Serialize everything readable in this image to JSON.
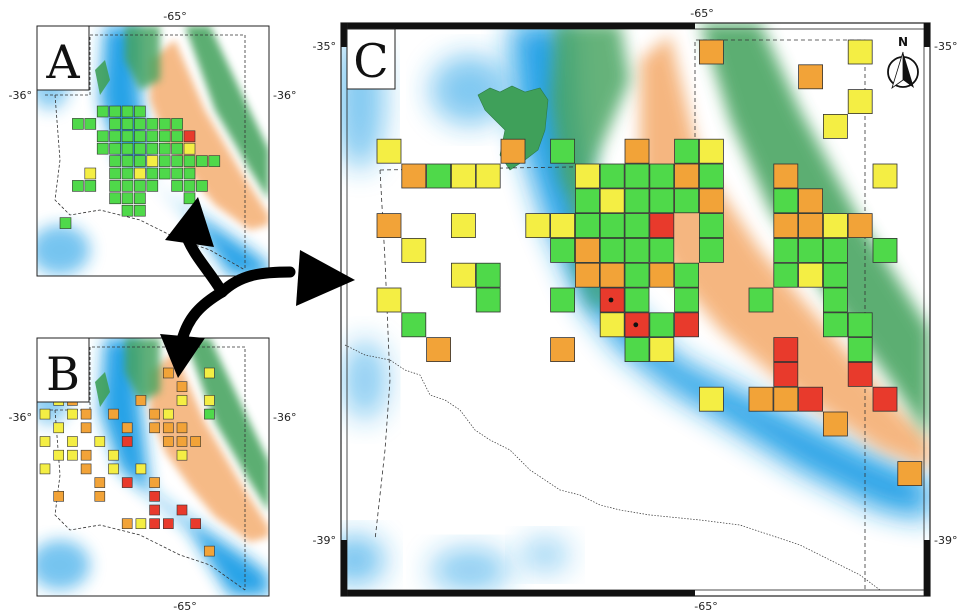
{
  "panels": [
    {
      "id": "A",
      "label": "A",
      "ticks": {
        "top": "-65°",
        "left": "-36°",
        "right": "-36°"
      },
      "cells": [
        {
          "r": 0,
          "c": 3,
          "cl": "green"
        },
        {
          "r": 0,
          "c": 4,
          "cl": "green"
        },
        {
          "r": 0,
          "c": 5,
          "cl": "green"
        },
        {
          "r": 0,
          "c": 6,
          "cl": "green"
        },
        {
          "r": 1,
          "c": 1,
          "cl": "green"
        },
        {
          "r": 1,
          "c": 2,
          "cl": "green"
        },
        {
          "r": 1,
          "c": 4,
          "cl": "green"
        },
        {
          "r": 1,
          "c": 5,
          "cl": "green"
        },
        {
          "r": 1,
          "c": 6,
          "cl": "green"
        },
        {
          "r": 1,
          "c": 7,
          "cl": "green"
        },
        {
          "r": 1,
          "c": 8,
          "cl": "green"
        },
        {
          "r": 1,
          "c": 9,
          "cl": "green"
        },
        {
          "r": 2,
          "c": 3,
          "cl": "green"
        },
        {
          "r": 2,
          "c": 4,
          "cl": "green"
        },
        {
          "r": 2,
          "c": 5,
          "cl": "green"
        },
        {
          "r": 2,
          "c": 6,
          "cl": "green"
        },
        {
          "r": 2,
          "c": 7,
          "cl": "green"
        },
        {
          "r": 2,
          "c": 8,
          "cl": "green"
        },
        {
          "r": 2,
          "c": 9,
          "cl": "green"
        },
        {
          "r": 2,
          "c": 10,
          "cl": "red"
        },
        {
          "r": 3,
          "c": 3,
          "cl": "green"
        },
        {
          "r": 3,
          "c": 4,
          "cl": "green"
        },
        {
          "r": 3,
          "c": 5,
          "cl": "green"
        },
        {
          "r": 3,
          "c": 6,
          "cl": "green"
        },
        {
          "r": 3,
          "c": 7,
          "cl": "green"
        },
        {
          "r": 3,
          "c": 8,
          "cl": "green"
        },
        {
          "r": 3,
          "c": 9,
          "cl": "green"
        },
        {
          "r": 3,
          "c": 10,
          "cl": "yellow"
        },
        {
          "r": 4,
          "c": 4,
          "cl": "green"
        },
        {
          "r": 4,
          "c": 5,
          "cl": "green"
        },
        {
          "r": 4,
          "c": 6,
          "cl": "green"
        },
        {
          "r": 4,
          "c": 7,
          "cl": "yellow"
        },
        {
          "r": 4,
          "c": 8,
          "cl": "green"
        },
        {
          "r": 4,
          "c": 9,
          "cl": "green"
        },
        {
          "r": 4,
          "c": 10,
          "cl": "green"
        },
        {
          "r": 4,
          "c": 11,
          "cl": "green"
        },
        {
          "r": 4,
          "c": 12,
          "cl": "green"
        },
        {
          "r": 5,
          "c": 2,
          "cl": "yellow"
        },
        {
          "r": 5,
          "c": 4,
          "cl": "green"
        },
        {
          "r": 5,
          "c": 5,
          "cl": "green"
        },
        {
          "r": 5,
          "c": 6,
          "cl": "yellow"
        },
        {
          "r": 5,
          "c": 7,
          "cl": "green"
        },
        {
          "r": 5,
          "c": 8,
          "cl": "green"
        },
        {
          "r": 5,
          "c": 9,
          "cl": "green"
        },
        {
          "r": 5,
          "c": 10,
          "cl": "green"
        },
        {
          "r": 6,
          "c": 1,
          "cl": "green"
        },
        {
          "r": 6,
          "c": 2,
          "cl": "green"
        },
        {
          "r": 6,
          "c": 4,
          "cl": "green"
        },
        {
          "r": 6,
          "c": 5,
          "cl": "green"
        },
        {
          "r": 6,
          "c": 6,
          "cl": "green"
        },
        {
          "r": 6,
          "c": 7,
          "cl": "green"
        },
        {
          "r": 6,
          "c": 9,
          "cl": "green"
        },
        {
          "r": 6,
          "c": 10,
          "cl": "green"
        },
        {
          "r": 6,
          "c": 11,
          "cl": "green"
        },
        {
          "r": 7,
          "c": 4,
          "cl": "green"
        },
        {
          "r": 7,
          "c": 5,
          "cl": "green"
        },
        {
          "r": 7,
          "c": 6,
          "cl": "green"
        },
        {
          "r": 7,
          "c": 10,
          "cl": "green"
        },
        {
          "r": 8,
          "c": 5,
          "cl": "green"
        },
        {
          "r": 8,
          "c": 6,
          "cl": "green"
        },
        {
          "r": 9,
          "c": 0,
          "cl": "green"
        }
      ]
    },
    {
      "id": "B",
      "label": "B",
      "ticks": {
        "bottom": "-65°",
        "left": "-36°",
        "right": "-36°"
      },
      "cells": [
        {
          "r": 0,
          "c": 9,
          "cl": "orange"
        },
        {
          "r": 0,
          "c": 12,
          "cl": "yellow"
        },
        {
          "r": 1,
          "c": 10,
          "cl": "orange"
        },
        {
          "r": 2,
          "c": 1,
          "cl": "yellow"
        },
        {
          "r": 2,
          "c": 2,
          "cl": "orange"
        },
        {
          "r": 2,
          "c": 7,
          "cl": "orange"
        },
        {
          "r": 2,
          "c": 10,
          "cl": "yellow"
        },
        {
          "r": 2,
          "c": 12,
          "cl": "yellow"
        },
        {
          "r": 3,
          "c": 0,
          "cl": "yellow"
        },
        {
          "r": 3,
          "c": 2,
          "cl": "yellow"
        },
        {
          "r": 3,
          "c": 3,
          "cl": "orange"
        },
        {
          "r": 3,
          "c": 5,
          "cl": "orange"
        },
        {
          "r": 3,
          "c": 8,
          "cl": "orange"
        },
        {
          "r": 3,
          "c": 9,
          "cl": "yellow"
        },
        {
          "r": 3,
          "c": 12,
          "cl": "green"
        },
        {
          "r": 4,
          "c": 1,
          "cl": "yellow"
        },
        {
          "r": 4,
          "c": 3,
          "cl": "orange"
        },
        {
          "r": 4,
          "c": 6,
          "cl": "orange"
        },
        {
          "r": 4,
          "c": 8,
          "cl": "orange"
        },
        {
          "r": 4,
          "c": 9,
          "cl": "orange"
        },
        {
          "r": 4,
          "c": 10,
          "cl": "orange"
        },
        {
          "r": 5,
          "c": 0,
          "cl": "yellow"
        },
        {
          "r": 5,
          "c": 2,
          "cl": "yellow"
        },
        {
          "r": 5,
          "c": 4,
          "cl": "yellow"
        },
        {
          "r": 5,
          "c": 6,
          "cl": "red"
        },
        {
          "r": 5,
          "c": 9,
          "cl": "orange"
        },
        {
          "r": 5,
          "c": 10,
          "cl": "orange"
        },
        {
          "r": 5,
          "c": 11,
          "cl": "orange"
        },
        {
          "r": 6,
          "c": 1,
          "cl": "yellow"
        },
        {
          "r": 6,
          "c": 2,
          "cl": "yellow"
        },
        {
          "r": 6,
          "c": 3,
          "cl": "orange"
        },
        {
          "r": 6,
          "c": 5,
          "cl": "yellow"
        },
        {
          "r": 6,
          "c": 10,
          "cl": "yellow"
        },
        {
          "r": 7,
          "c": 0,
          "cl": "yellow"
        },
        {
          "r": 7,
          "c": 3,
          "cl": "orange"
        },
        {
          "r": 7,
          "c": 5,
          "cl": "yellow"
        },
        {
          "r": 7,
          "c": 7,
          "cl": "yellow"
        },
        {
          "r": 8,
          "c": 4,
          "cl": "orange"
        },
        {
          "r": 8,
          "c": 6,
          "cl": "red"
        },
        {
          "r": 8,
          "c": 8,
          "cl": "orange"
        },
        {
          "r": 9,
          "c": 1,
          "cl": "orange"
        },
        {
          "r": 9,
          "c": 4,
          "cl": "orange"
        },
        {
          "r": 9,
          "c": 8,
          "cl": "red"
        },
        {
          "r": 10,
          "c": 8,
          "cl": "red"
        },
        {
          "r": 10,
          "c": 10,
          "cl": "red"
        },
        {
          "r": 11,
          "c": 6,
          "cl": "orange"
        },
        {
          "r": 11,
          "c": 7,
          "cl": "yellow"
        },
        {
          "r": 11,
          "c": 8,
          "cl": "red"
        },
        {
          "r": 11,
          "c": 9,
          "cl": "red"
        },
        {
          "r": 11,
          "c": 11,
          "cl": "red"
        },
        {
          "r": 13,
          "c": 12,
          "cl": "orange"
        }
      ]
    },
    {
      "id": "C",
      "label": "C",
      "ticks": {
        "top": "-65°",
        "bottom": "-65°",
        "left_top": "-35°",
        "left_bottom": "-39°",
        "right_top": "-35°",
        "right_bottom": "-39°"
      },
      "north_label": "N",
      "cells": [
        {
          "r": 0,
          "c": 13,
          "cl": "orange"
        },
        {
          "r": 0,
          "c": 19,
          "cl": "yellow"
        },
        {
          "r": 1,
          "c": 17,
          "cl": "orange"
        },
        {
          "r": 2,
          "c": 19,
          "cl": "yellow"
        },
        {
          "r": 3,
          "c": 18,
          "cl": "yellow"
        },
        {
          "r": 4,
          "c": 0,
          "cl": "yellow"
        },
        {
          "r": 4,
          "c": 5,
          "cl": "orange"
        },
        {
          "r": 4,
          "c": 7,
          "cl": "green"
        },
        {
          "r": 4,
          "c": 10,
          "cl": "orange"
        },
        {
          "r": 4,
          "c": 12,
          "cl": "green"
        },
        {
          "r": 4,
          "c": 13,
          "cl": "yellow"
        },
        {
          "r": 5,
          "c": 1,
          "cl": "orange"
        },
        {
          "r": 5,
          "c": 2,
          "cl": "green"
        },
        {
          "r": 5,
          "c": 3,
          "cl": "yellow"
        },
        {
          "r": 5,
          "c": 4,
          "cl": "yellow"
        },
        {
          "r": 5,
          "c": 8,
          "cl": "yellow"
        },
        {
          "r": 5,
          "c": 9,
          "cl": "green"
        },
        {
          "r": 5,
          "c": 10,
          "cl": "green"
        },
        {
          "r": 5,
          "c": 11,
          "cl": "green"
        },
        {
          "r": 5,
          "c": 12,
          "cl": "orange"
        },
        {
          "r": 5,
          "c": 13,
          "cl": "green"
        },
        {
          "r": 5,
          "c": 16,
          "cl": "orange"
        },
        {
          "r": 5,
          "c": 20,
          "cl": "yellow"
        },
        {
          "r": 6,
          "c": 8,
          "cl": "green"
        },
        {
          "r": 6,
          "c": 9,
          "cl": "yellow"
        },
        {
          "r": 6,
          "c": 10,
          "cl": "green"
        },
        {
          "r": 6,
          "c": 11,
          "cl": "green"
        },
        {
          "r": 6,
          "c": 12,
          "cl": "green"
        },
        {
          "r": 6,
          "c": 13,
          "cl": "orange"
        },
        {
          "r": 6,
          "c": 16,
          "cl": "green"
        },
        {
          "r": 6,
          "c": 17,
          "cl": "orange"
        },
        {
          "r": 7,
          "c": 0,
          "cl": "orange"
        },
        {
          "r": 7,
          "c": 3,
          "cl": "yellow"
        },
        {
          "r": 7,
          "c": 6,
          "cl": "yellow"
        },
        {
          "r": 7,
          "c": 7,
          "cl": "yellow"
        },
        {
          "r": 7,
          "c": 8,
          "cl": "green"
        },
        {
          "r": 7,
          "c": 9,
          "cl": "green"
        },
        {
          "r": 7,
          "c": 10,
          "cl": "green"
        },
        {
          "r": 7,
          "c": 11,
          "cl": "red"
        },
        {
          "r": 7,
          "c": 13,
          "cl": "green"
        },
        {
          "r": 7,
          "c": 16,
          "cl": "orange"
        },
        {
          "r": 7,
          "c": 17,
          "cl": "orange"
        },
        {
          "r": 7,
          "c": 18,
          "cl": "yellow"
        },
        {
          "r": 7,
          "c": 19,
          "cl": "orange"
        },
        {
          "r": 8,
          "c": 1,
          "cl": "yellow"
        },
        {
          "r": 8,
          "c": 7,
          "cl": "green"
        },
        {
          "r": 8,
          "c": 8,
          "cl": "orange"
        },
        {
          "r": 8,
          "c": 9,
          "cl": "green"
        },
        {
          "r": 8,
          "c": 10,
          "cl": "green"
        },
        {
          "r": 8,
          "c": 11,
          "cl": "green"
        },
        {
          "r": 8,
          "c": 13,
          "cl": "green"
        },
        {
          "r": 8,
          "c": 16,
          "cl": "green"
        },
        {
          "r": 8,
          "c": 17,
          "cl": "green"
        },
        {
          "r": 8,
          "c": 18,
          "cl": "green"
        },
        {
          "r": 8,
          "c": 20,
          "cl": "green"
        },
        {
          "r": 9,
          "c": 3,
          "cl": "yellow"
        },
        {
          "r": 9,
          "c": 4,
          "cl": "green"
        },
        {
          "r": 9,
          "c": 8,
          "cl": "orange"
        },
        {
          "r": 9,
          "c": 9,
          "cl": "orange"
        },
        {
          "r": 9,
          "c": 10,
          "cl": "green"
        },
        {
          "r": 9,
          "c": 11,
          "cl": "orange"
        },
        {
          "r": 9,
          "c": 12,
          "cl": "green"
        },
        {
          "r": 9,
          "c": 16,
          "cl": "green"
        },
        {
          "r": 9,
          "c": 17,
          "cl": "yellow"
        },
        {
          "r": 9,
          "c": 18,
          "cl": "green"
        },
        {
          "r": 10,
          "c": 0,
          "cl": "yellow"
        },
        {
          "r": 10,
          "c": 4,
          "cl": "green"
        },
        {
          "r": 10,
          "c": 7,
          "cl": "green"
        },
        {
          "r": 10,
          "c": 9,
          "cl": "red",
          "dot": true
        },
        {
          "r": 10,
          "c": 10,
          "cl": "green"
        },
        {
          "r": 10,
          "c": 12,
          "cl": "green"
        },
        {
          "r": 10,
          "c": 15,
          "cl": "green"
        },
        {
          "r": 10,
          "c": 18,
          "cl": "green"
        },
        {
          "r": 11,
          "c": 1,
          "cl": "green"
        },
        {
          "r": 11,
          "c": 9,
          "cl": "yellow"
        },
        {
          "r": 11,
          "c": 10,
          "cl": "red",
          "dot": true
        },
        {
          "r": 11,
          "c": 11,
          "cl": "green"
        },
        {
          "r": 11,
          "c": 12,
          "cl": "red"
        },
        {
          "r": 11,
          "c": 18,
          "cl": "green"
        },
        {
          "r": 11,
          "c": 19,
          "cl": "green"
        },
        {
          "r": 12,
          "c": 2,
          "cl": "orange"
        },
        {
          "r": 12,
          "c": 7,
          "cl": "orange"
        },
        {
          "r": 12,
          "c": 10,
          "cl": "green"
        },
        {
          "r": 12,
          "c": 11,
          "cl": "yellow"
        },
        {
          "r": 12,
          "c": 16,
          "cl": "red"
        },
        {
          "r": 12,
          "c": 19,
          "cl": "green"
        },
        {
          "r": 13,
          "c": 16,
          "cl": "red"
        },
        {
          "r": 13,
          "c": 19,
          "cl": "red"
        },
        {
          "r": 14,
          "c": 13,
          "cl": "yellow"
        },
        {
          "r": 14,
          "c": 15,
          "cl": "orange"
        },
        {
          "r": 14,
          "c": 16,
          "cl": "orange"
        },
        {
          "r": 14,
          "c": 17,
          "cl": "red"
        },
        {
          "r": 14,
          "c": 20,
          "cl": "red"
        },
        {
          "r": 15,
          "c": 18,
          "cl": "orange"
        },
        {
          "r": 17,
          "c": 21,
          "cl": "orange"
        }
      ]
    }
  ],
  "colors": {
    "red": "#e83a2c",
    "orange": "#f2a338",
    "yellow": "#f4ee44",
    "green": "#4fd94a",
    "ocean_blue": "#1a9ee6",
    "ridge_orange": "#f5b37a",
    "ridge_green": "#3fa05a"
  },
  "icons": [
    "north-arrow-icon",
    "double-arrow-icon"
  ]
}
